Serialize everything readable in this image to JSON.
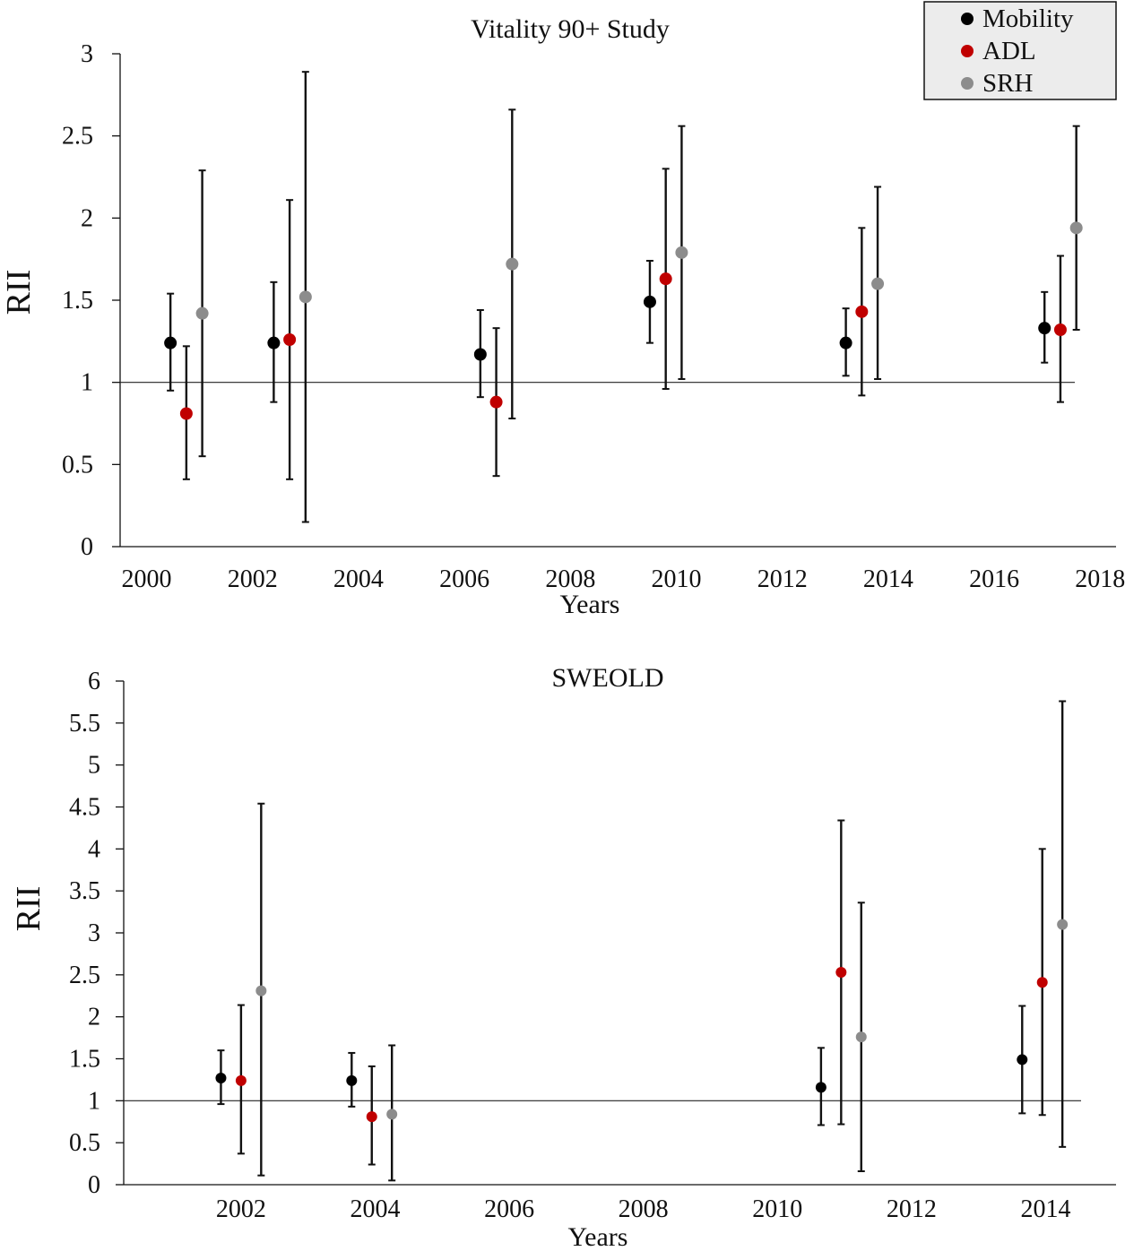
{
  "chart_data": [
    {
      "type": "scatter",
      "title": "Vitality 90+ Study",
      "xlabel": "Years",
      "ylabel": "RII",
      "xlim": [
        1999.5,
        2018.3
      ],
      "ylim": [
        0,
        3
      ],
      "x_ticks": [
        2000,
        2002,
        2004,
        2006,
        2008,
        2010,
        2012,
        2014,
        2016,
        2018
      ],
      "y_ticks": [
        0,
        0.5,
        1,
        1.5,
        2,
        2.5,
        3
      ],
      "y_tick_labels": [
        "0",
        "0.5",
        "1",
        "1.5",
        "2",
        "2.5",
        "3"
      ],
      "reference_line": 1,
      "grid": false,
      "legend": {
        "placement": "top-right",
        "entries": [
          "Mobility",
          "ADL",
          "SRH"
        ]
      },
      "series": [
        {
          "name": "Mobility",
          "color": "#000000",
          "points": [
            {
              "x": 2000.45,
              "y": 1.24,
              "low": 0.95,
              "high": 1.54
            },
            {
              "x": 2002.4,
              "y": 1.24,
              "low": 0.88,
              "high": 1.61
            },
            {
              "x": 2006.3,
              "y": 1.17,
              "low": 0.91,
              "high": 1.44
            },
            {
              "x": 2009.5,
              "y": 1.49,
              "low": 1.24,
              "high": 1.74
            },
            {
              "x": 2013.2,
              "y": 1.24,
              "low": 1.04,
              "high": 1.45
            },
            {
              "x": 2016.95,
              "y": 1.33,
              "low": 1.12,
              "high": 1.55
            }
          ]
        },
        {
          "name": "ADL",
          "color": "#c00000",
          "points": [
            {
              "x": 2000.75,
              "y": 0.81,
              "low": 0.41,
              "high": 1.22
            },
            {
              "x": 2002.7,
              "y": 1.26,
              "low": 0.41,
              "high": 2.11
            },
            {
              "x": 2006.6,
              "y": 0.88,
              "low": 0.43,
              "high": 1.33
            },
            {
              "x": 2009.8,
              "y": 1.63,
              "low": 0.96,
              "high": 2.3
            },
            {
              "x": 2013.5,
              "y": 1.43,
              "low": 0.92,
              "high": 1.94
            },
            {
              "x": 2017.25,
              "y": 1.32,
              "low": 0.88,
              "high": 1.77
            }
          ]
        },
        {
          "name": "SRH",
          "color": "#8c8c8c",
          "points": [
            {
              "x": 2001.05,
              "y": 1.42,
              "low": 0.55,
              "high": 2.29
            },
            {
              "x": 2003.0,
              "y": 1.52,
              "low": 0.15,
              "high": 2.89
            },
            {
              "x": 2006.9,
              "y": 1.72,
              "low": 0.78,
              "high": 2.66
            },
            {
              "x": 2010.1,
              "y": 1.79,
              "low": 1.02,
              "high": 2.56
            },
            {
              "x": 2013.8,
              "y": 1.6,
              "low": 1.02,
              "high": 2.19
            },
            {
              "x": 2017.55,
              "y": 1.94,
              "low": 1.32,
              "high": 2.56
            }
          ]
        }
      ]
    },
    {
      "type": "scatter",
      "title": "SWEOLD",
      "xlabel": "Years",
      "ylabel": "RII",
      "xlim": [
        2000.25,
        2015.05
      ],
      "ylim": [
        0,
        6
      ],
      "x_ticks": [
        2002,
        2004,
        2006,
        2008,
        2010,
        2012,
        2014
      ],
      "y_ticks": [
        0,
        0.5,
        1,
        1.5,
        2,
        2.5,
        3,
        3.5,
        4,
        4.5,
        5,
        5.5,
        6
      ],
      "y_tick_labels": [
        "0",
        "0.5",
        "1",
        "1.5",
        "2",
        "2.5",
        "3",
        "3.5",
        "4",
        "4.5",
        "5",
        "5.5",
        "6"
      ],
      "reference_line": 1,
      "grid": false,
      "series": [
        {
          "name": "Mobility",
          "color": "#000000",
          "points": [
            {
              "x": 2001.7,
              "y": 1.27,
              "low": 0.96,
              "high": 1.6
            },
            {
              "x": 2003.65,
              "y": 1.24,
              "low": 0.93,
              "high": 1.57
            },
            {
              "x": 2010.65,
              "y": 1.16,
              "low": 0.71,
              "high": 1.63
            },
            {
              "x": 2013.65,
              "y": 1.49,
              "low": 0.85,
              "high": 2.13
            }
          ]
        },
        {
          "name": "ADL",
          "color": "#c00000",
          "points": [
            {
              "x": 2002.0,
              "y": 1.24,
              "low": 0.37,
              "high": 2.14
            },
            {
              "x": 2003.95,
              "y": 0.81,
              "low": 0.24,
              "high": 1.41
            },
            {
              "x": 2010.95,
              "y": 2.53,
              "low": 0.72,
              "high": 4.34
            },
            {
              "x": 2013.95,
              "y": 2.41,
              "low": 0.83,
              "high": 4.0
            }
          ]
        },
        {
          "name": "SRH",
          "color": "#8c8c8c",
          "points": [
            {
              "x": 2002.3,
              "y": 2.31,
              "low": 0.11,
              "high": 4.54
            },
            {
              "x": 2004.25,
              "y": 0.84,
              "low": 0.05,
              "high": 1.66
            },
            {
              "x": 2011.25,
              "y": 1.76,
              "low": 0.16,
              "high": 3.36
            },
            {
              "x": 2014.25,
              "y": 3.1,
              "low": 0.45,
              "high": 5.76
            }
          ]
        }
      ]
    }
  ]
}
